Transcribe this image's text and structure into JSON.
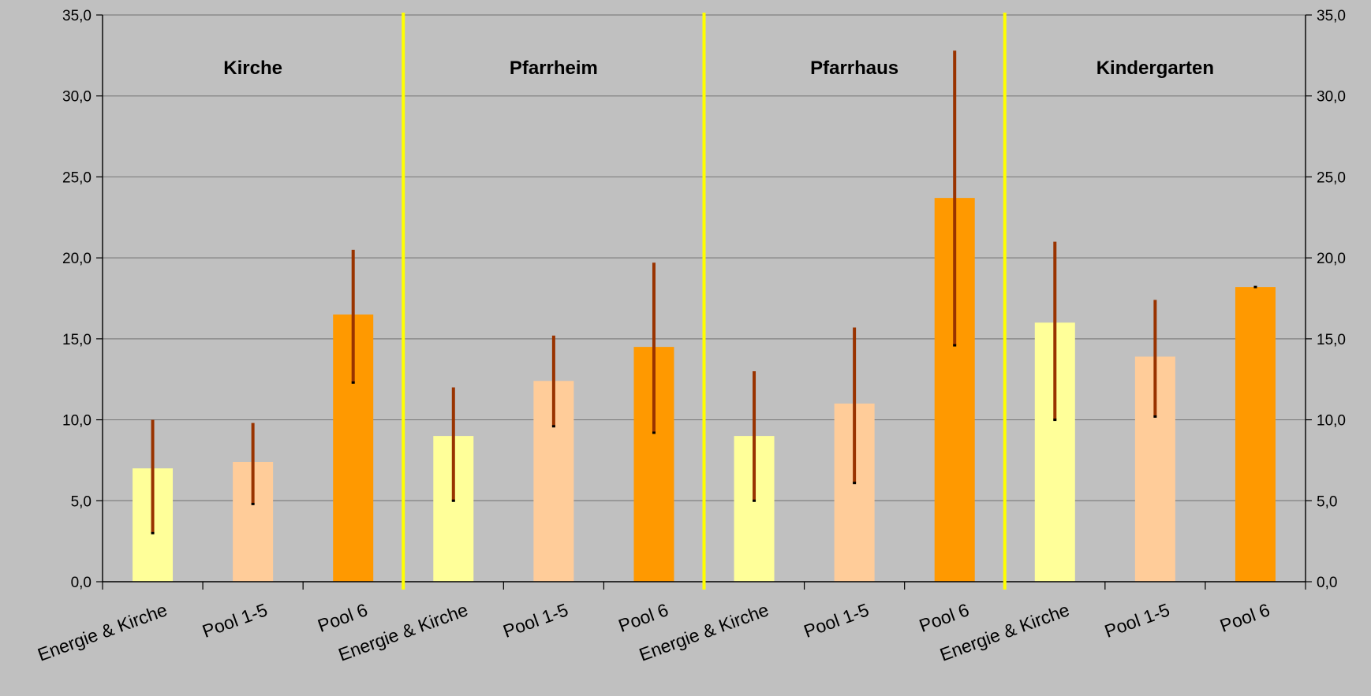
{
  "chart_data": {
    "type": "bar",
    "title": "",
    "xlabel": "",
    "ylabel": "",
    "ylim": [
      0,
      35
    ],
    "y_ticks": [
      "0,0",
      "5,0",
      "10,0",
      "15,0",
      "20,0",
      "25,0",
      "30,0",
      "35,0"
    ],
    "y_tick_values": [
      0,
      5,
      10,
      15,
      20,
      25,
      30,
      35
    ],
    "grid": true,
    "groups": [
      {
        "label": "Kirche",
        "bars": [
          {
            "category": "Energie & Kirche",
            "value": 7.0,
            "range": [
              3.0,
              10.0
            ]
          },
          {
            "category": "Pool 1-5",
            "value": 7.4,
            "range": [
              4.8,
              9.8
            ]
          },
          {
            "category": "Pool 6",
            "value": 16.5,
            "range": [
              12.3,
              20.5
            ]
          }
        ]
      },
      {
        "label": "Pfarrheim",
        "bars": [
          {
            "category": "Energie & Kirche",
            "value": 9.0,
            "range": [
              5.0,
              12.0
            ]
          },
          {
            "category": "Pool 1-5",
            "value": 12.4,
            "range": [
              9.6,
              15.2
            ]
          },
          {
            "category": "Pool 6",
            "value": 14.5,
            "range": [
              9.2,
              19.7
            ]
          }
        ]
      },
      {
        "label": "Pfarrhaus",
        "bars": [
          {
            "category": "Energie & Kirche",
            "value": 9.0,
            "range": [
              5.0,
              13.0
            ]
          },
          {
            "category": "Pool 1-5",
            "value": 11.0,
            "range": [
              6.1,
              15.7
            ]
          },
          {
            "category": "Pool 6",
            "value": 23.7,
            "range": [
              14.6,
              32.8
            ]
          }
        ]
      },
      {
        "label": "Kindergarten",
        "bars": [
          {
            "category": "Energie & Kirche",
            "value": 16.0,
            "range": [
              10.0,
              21.0
            ]
          },
          {
            "category": "Pool 1-5",
            "value": 13.9,
            "range": [
              10.2,
              17.4
            ]
          },
          {
            "category": "Pool 6",
            "value": 18.2,
            "range": [
              18.2,
              18.2
            ]
          }
        ]
      }
    ],
    "colors": {
      "Energie & Kirche": "#ffff99",
      "Pool 1-5": "#ffcc99",
      "Pool 6": "#ff9900",
      "range_line": "#993300",
      "separator": "#ffff00",
      "background": "#c0c0c0",
      "gridline": "#808080"
    }
  }
}
